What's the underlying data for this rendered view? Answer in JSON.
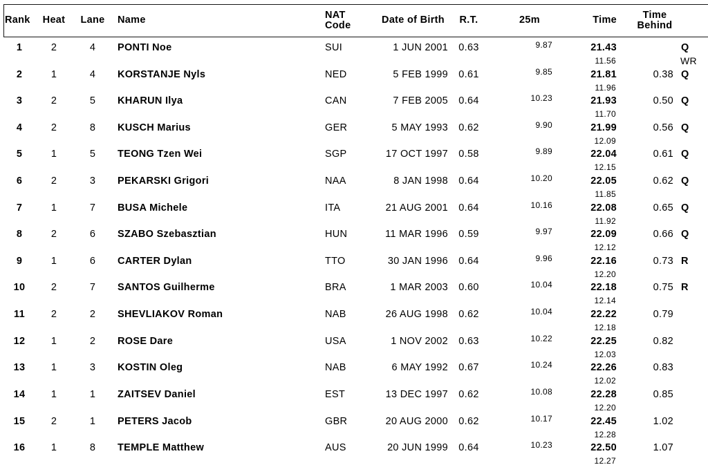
{
  "document": {
    "kind": "swimming-heat-results-table"
  },
  "colors": {
    "text": "#000000",
    "border": "#151515",
    "background": "#ffffff"
  },
  "header": {
    "columns": {
      "rank": "Rank",
      "heat": "Heat",
      "lane": "Lane",
      "name": "Name",
      "nat": "NAT\nCode",
      "dob": "Date of Birth",
      "rt": "R.T.",
      "m25": "25m",
      "time": "Time",
      "behind": "Time\nBehind"
    }
  },
  "rows": [
    {
      "rank": "1",
      "heat": "2",
      "lane": "4",
      "name": "PONTI Noe",
      "nat": "SUI",
      "dob": "1 JUN 2001",
      "rt": "0.63",
      "m25": "9.87",
      "time": "21.43",
      "split": "11.56",
      "behind": "",
      "qual": "Q",
      "qual2": "WR"
    },
    {
      "rank": "2",
      "heat": "1",
      "lane": "4",
      "name": "KORSTANJE Nyls",
      "nat": "NED",
      "dob": "5 FEB 1999",
      "rt": "0.61",
      "m25": "9.85",
      "time": "21.81",
      "split": "11.96",
      "behind": "0.38",
      "qual": "Q",
      "qual2": ""
    },
    {
      "rank": "3",
      "heat": "2",
      "lane": "5",
      "name": "KHARUN Ilya",
      "nat": "CAN",
      "dob": "7 FEB 2005",
      "rt": "0.64",
      "m25": "10.23",
      "time": "21.93",
      "split": "11.70",
      "behind": "0.50",
      "qual": "Q",
      "qual2": ""
    },
    {
      "rank": "4",
      "heat": "2",
      "lane": "8",
      "name": "KUSCH Marius",
      "nat": "GER",
      "dob": "5 MAY 1993",
      "rt": "0.62",
      "m25": "9.90",
      "time": "21.99",
      "split": "12.09",
      "behind": "0.56",
      "qual": "Q",
      "qual2": ""
    },
    {
      "rank": "5",
      "heat": "1",
      "lane": "5",
      "name": "TEONG Tzen Wei",
      "nat": "SGP",
      "dob": "17 OCT 1997",
      "rt": "0.58",
      "m25": "9.89",
      "time": "22.04",
      "split": "12.15",
      "behind": "0.61",
      "qual": "Q",
      "qual2": ""
    },
    {
      "rank": "6",
      "heat": "2",
      "lane": "3",
      "name": "PEKARSKI Grigori",
      "nat": "NAA",
      "dob": "8 JAN 1998",
      "rt": "0.64",
      "m25": "10.20",
      "time": "22.05",
      "split": "11.85",
      "behind": "0.62",
      "qual": "Q",
      "qual2": ""
    },
    {
      "rank": "7",
      "heat": "1",
      "lane": "7",
      "name": "BUSA Michele",
      "nat": "ITA",
      "dob": "21 AUG 2001",
      "rt": "0.64",
      "m25": "10.16",
      "time": "22.08",
      "split": "11.92",
      "behind": "0.65",
      "qual": "Q",
      "qual2": ""
    },
    {
      "rank": "8",
      "heat": "2",
      "lane": "6",
      "name": "SZABO Szebasztian",
      "nat": "HUN",
      "dob": "11 MAR 1996",
      "rt": "0.59",
      "m25": "9.97",
      "time": "22.09",
      "split": "12.12",
      "behind": "0.66",
      "qual": "Q",
      "qual2": ""
    },
    {
      "rank": "9",
      "heat": "1",
      "lane": "6",
      "name": "CARTER Dylan",
      "nat": "TTO",
      "dob": "30 JAN 1996",
      "rt": "0.64",
      "m25": "9.96",
      "time": "22.16",
      "split": "12.20",
      "behind": "0.73",
      "qual": "R",
      "qual2": ""
    },
    {
      "rank": "10",
      "heat": "2",
      "lane": "7",
      "name": "SANTOS Guilherme",
      "nat": "BRA",
      "dob": "1 MAR 2003",
      "rt": "0.60",
      "m25": "10.04",
      "time": "22.18",
      "split": "12.14",
      "behind": "0.75",
      "qual": "R",
      "qual2": ""
    },
    {
      "rank": "11",
      "heat": "2",
      "lane": "2",
      "name": "SHEVLIAKOV Roman",
      "nat": "NAB",
      "dob": "26 AUG 1998",
      "rt": "0.62",
      "m25": "10.04",
      "time": "22.22",
      "split": "12.18",
      "behind": "0.79",
      "qual": "",
      "qual2": ""
    },
    {
      "rank": "12",
      "heat": "1",
      "lane": "2",
      "name": "ROSE Dare",
      "nat": "USA",
      "dob": "1 NOV 2002",
      "rt": "0.63",
      "m25": "10.22",
      "time": "22.25",
      "split": "12.03",
      "behind": "0.82",
      "qual": "",
      "qual2": ""
    },
    {
      "rank": "13",
      "heat": "1",
      "lane": "3",
      "name": "KOSTIN Oleg",
      "nat": "NAB",
      "dob": "6 MAY 1992",
      "rt": "0.67",
      "m25": "10.24",
      "time": "22.26",
      "split": "12.02",
      "behind": "0.83",
      "qual": "",
      "qual2": ""
    },
    {
      "rank": "14",
      "heat": "1",
      "lane": "1",
      "name": "ZAITSEV Daniel",
      "nat": "EST",
      "dob": "13 DEC 1997",
      "rt": "0.62",
      "m25": "10.08",
      "time": "22.28",
      "split": "12.20",
      "behind": "0.85",
      "qual": "",
      "qual2": ""
    },
    {
      "rank": "15",
      "heat": "2",
      "lane": "1",
      "name": "PETERS Jacob",
      "nat": "GBR",
      "dob": "20 AUG 2000",
      "rt": "0.62",
      "m25": "10.17",
      "time": "22.45",
      "split": "12.28",
      "behind": "1.02",
      "qual": "",
      "qual2": ""
    },
    {
      "rank": "16",
      "heat": "1",
      "lane": "8",
      "name": "TEMPLE Matthew",
      "nat": "AUS",
      "dob": "20 JUN 1999",
      "rt": "0.64",
      "m25": "10.23",
      "time": "22.50",
      "split": "12.27",
      "behind": "1.07",
      "qual": "",
      "qual2": ""
    }
  ]
}
